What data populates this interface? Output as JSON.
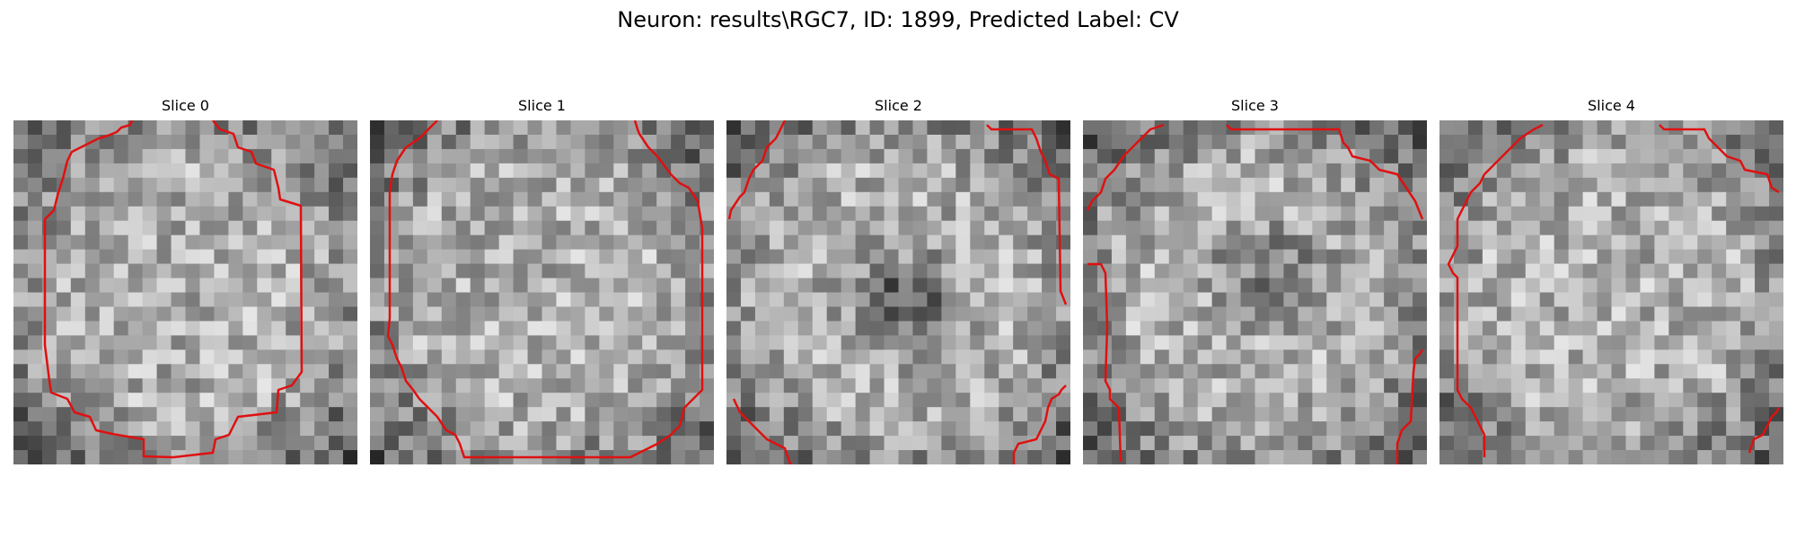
{
  "figure": {
    "title": "Neuron: results\\RGC7, ID: 1899, Predicted Label: CV",
    "contour_color": "#e01010"
  },
  "slices": [
    {
      "title": "Slice 0"
    },
    {
      "title": "Slice 1"
    },
    {
      "title": "Slice 2"
    },
    {
      "title": "Slice 3"
    },
    {
      "title": "Slice 4"
    }
  ]
}
